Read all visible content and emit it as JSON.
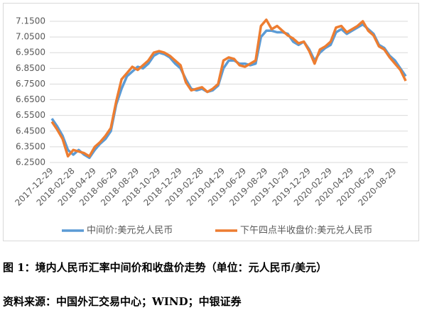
{
  "chart_data": {
    "type": "line",
    "categories": [
      "2017-12-29",
      null,
      null,
      null,
      "2018-02-28",
      null,
      null,
      null,
      "2018-04-29",
      null,
      null,
      null,
      "2018-06-29",
      null,
      null,
      null,
      "2018-08-29",
      null,
      null,
      null,
      "2018-10-29",
      null,
      null,
      null,
      "2018-12-29",
      null,
      null,
      null,
      "2019-02-28",
      null,
      null,
      null,
      "2019-04-29",
      null,
      null,
      null,
      "2019-06-29",
      null,
      null,
      null,
      "2019-08-29",
      null,
      null,
      null,
      "2019-10-29",
      null,
      null,
      null,
      "2019-12-29",
      null,
      null,
      null,
      "2020-02-29",
      null,
      null,
      null,
      "2020-04-29",
      null,
      null,
      null,
      "2020-06-29",
      null,
      null,
      null,
      "2020-08-29",
      null,
      null
    ],
    "series": [
      {
        "name": "中间价:美元兑人民币",
        "color": "#5b9bd5",
        "values": [
          6.53,
          6.48,
          6.42,
          6.33,
          6.3,
          6.33,
          6.3,
          6.28,
          6.33,
          6.37,
          6.4,
          6.45,
          6.62,
          6.72,
          6.8,
          6.83,
          6.86,
          6.85,
          6.88,
          6.93,
          6.95,
          6.94,
          6.92,
          6.88,
          6.85,
          6.78,
          6.72,
          6.71,
          6.72,
          6.7,
          6.71,
          6.74,
          6.85,
          6.9,
          6.9,
          6.88,
          6.88,
          6.87,
          6.88,
          7.05,
          7.09,
          7.09,
          7.08,
          7.08,
          7.07,
          7.02,
          7.0,
          7.02,
          6.97,
          6.9,
          6.95,
          6.98,
          7.0,
          7.08,
          7.1,
          7.07,
          7.09,
          7.11,
          7.13,
          7.1,
          7.07,
          7.0,
          6.98,
          6.93,
          6.9,
          6.85,
          6.8
        ]
      },
      {
        "name": "下午四点半收盘价:美元兑人民币",
        "color": "#ed7d31",
        "values": [
          6.51,
          6.46,
          6.4,
          6.29,
          6.33,
          6.32,
          6.31,
          6.29,
          6.35,
          6.38,
          6.42,
          6.47,
          6.64,
          6.78,
          6.82,
          6.86,
          6.84,
          6.87,
          6.9,
          6.95,
          6.96,
          6.95,
          6.93,
          6.9,
          6.87,
          6.76,
          6.71,
          6.72,
          6.73,
          6.7,
          6.72,
          6.75,
          6.9,
          6.92,
          6.91,
          6.87,
          6.86,
          6.88,
          6.9,
          7.12,
          7.16,
          7.1,
          7.12,
          7.09,
          7.06,
          7.04,
          7.01,
          7.02,
          6.96,
          6.88,
          6.97,
          6.99,
          7.02,
          7.11,
          7.12,
          7.08,
          7.1,
          7.12,
          7.15,
          7.09,
          7.06,
          6.99,
          6.97,
          6.92,
          6.88,
          6.84,
          6.77
        ]
      }
    ],
    "ylim": [
      6.25,
      7.2
    ],
    "yticks": [
      {
        "value": 6.25,
        "label": "6.2500"
      },
      {
        "value": 6.35,
        "label": "6.3500"
      },
      {
        "value": 6.45,
        "label": "6.4500"
      },
      {
        "value": 6.55,
        "label": "6.5500"
      },
      {
        "value": 6.65,
        "label": "6.6500"
      },
      {
        "value": 6.75,
        "label": "6.7500"
      },
      {
        "value": 6.85,
        "label": "6.8500"
      },
      {
        "value": 6.95,
        "label": "6.9500"
      },
      {
        "value": 7.05,
        "label": "7.0500"
      },
      {
        "value": 7.15,
        "label": "7.1500"
      }
    ],
    "grid": true,
    "legend": "bottom"
  },
  "caption": "图 1：境内人民币汇率中间价和收盘价走势（单位：元人民币/美元）",
  "source": "资料来源：中国外汇交易中心；WIND；中银证券"
}
